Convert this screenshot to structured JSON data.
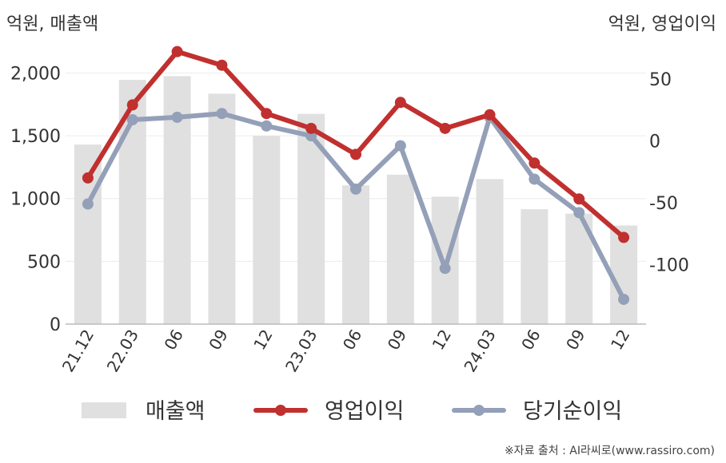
{
  "chart_data": {
    "type": "bar+line",
    "categories": [
      "21.12",
      "22.03",
      "06",
      "09",
      "12",
      "23.03",
      "06",
      "09",
      "12",
      "24.03",
      "06",
      "09",
      "12"
    ],
    "y_left": {
      "label": "억원, 매출액",
      "range": [
        0,
        2200
      ],
      "ticks": [
        "0",
        "500",
        "1,000",
        "1,500",
        "2,000"
      ],
      "tick_values": [
        0,
        500,
        1000,
        1500,
        2000
      ]
    },
    "y_right": {
      "label": "억원, 영업이익",
      "range": [
        -148,
        75
      ],
      "ticks": [
        "-100",
        "-50",
        "0",
        "50"
      ],
      "tick_values": [
        -100,
        -50,
        0,
        50
      ]
    },
    "series": [
      {
        "name": "매출액",
        "kind": "bar",
        "axis": "left",
        "color": "#e0e0e0",
        "values": [
          1430,
          1945,
          1975,
          1835,
          1500,
          1675,
          1105,
          1190,
          1015,
          1155,
          915,
          880,
          785
        ]
      },
      {
        "name": "영업이익",
        "kind": "line",
        "axis": "right",
        "color": "#c0302f",
        "values": [
          -30,
          29,
          72,
          61,
          22,
          10,
          -11,
          31,
          10,
          21,
          -18,
          -47,
          -78
        ]
      },
      {
        "name": "당기순이익",
        "kind": "line",
        "axis": "right",
        "color": "#94a0b8",
        "values": [
          -51,
          17,
          19,
          22,
          12,
          4,
          -39,
          -4,
          -103,
          19,
          -31,
          -58,
          -128
        ]
      }
    ],
    "grid": true,
    "legend": "bottom"
  },
  "source": "※자료 출처 : AI라씨로(www.rassiro.com)"
}
